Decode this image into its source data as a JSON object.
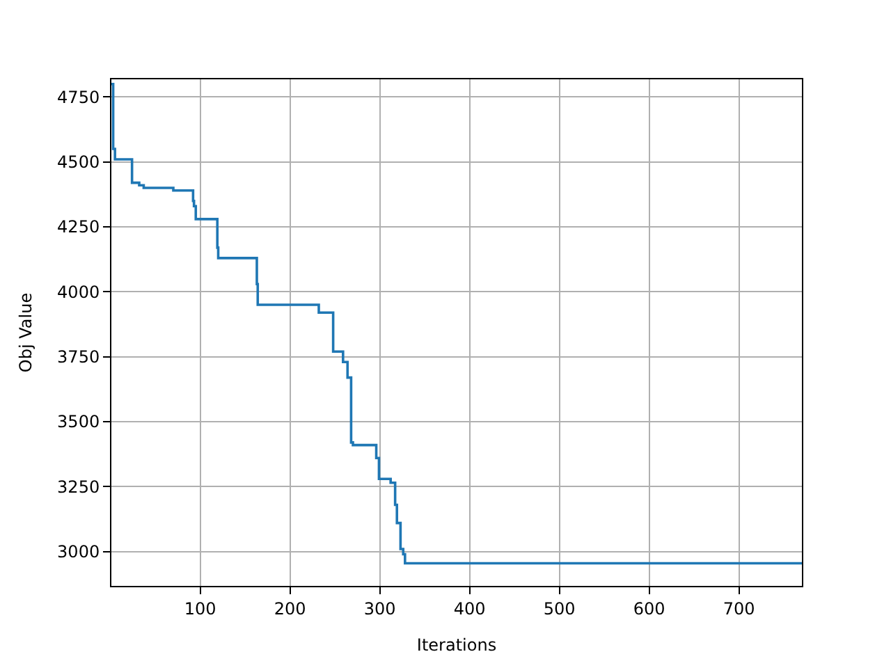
{
  "chart_data": {
    "type": "step",
    "xlabel": "Iterations",
    "ylabel": "Obj Value",
    "x": [
      1,
      3,
      5,
      24,
      32,
      37,
      70,
      92,
      93,
      95,
      119,
      120,
      122,
      163,
      164,
      232,
      248,
      259,
      264,
      268,
      270,
      296,
      299,
      312,
      317,
      319,
      323,
      326,
      328,
      770
    ],
    "series": [
      {
        "color": "#1f77b4",
        "values": [
          4800,
          4550,
          4510,
          4420,
          4410,
          4400,
          4390,
          4350,
          4330,
          4280,
          4170,
          4130,
          4130,
          4030,
          3950,
          3920,
          3770,
          3730,
          3670,
          3420,
          3410,
          3360,
          3280,
          3265,
          3180,
          3110,
          3010,
          2990,
          2955,
          2955
        ]
      }
    ],
    "xlim": [
      1,
      770
    ],
    "ylim": [
      2868,
      4818
    ],
    "xticks": [
      100,
      200,
      300,
      400,
      500,
      600,
      700
    ],
    "yticks": [
      3000,
      3250,
      3500,
      3750,
      4000,
      4250,
      4500,
      4750
    ],
    "grid": true,
    "legend": false
  }
}
